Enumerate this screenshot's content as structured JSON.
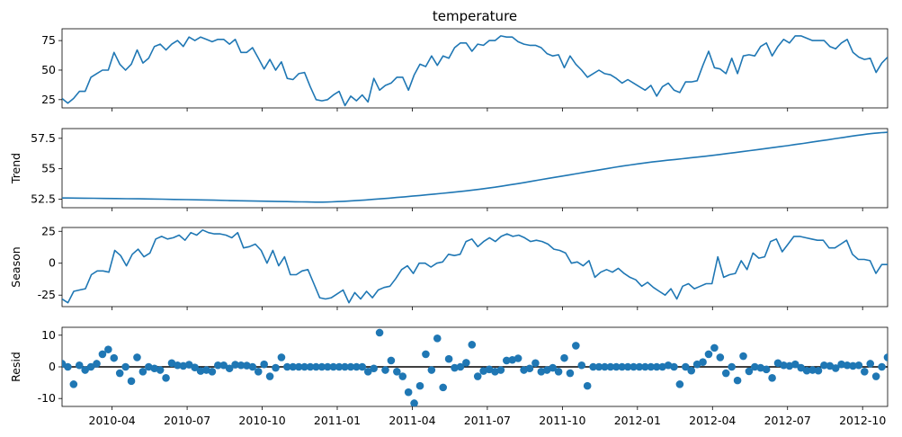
{
  "chart_data": [
    {
      "type": "line",
      "title": "temperature",
      "ylabel": "",
      "yticks": [
        25,
        50,
        75
      ],
      "ylim": [
        18,
        85
      ],
      "x_start": "2010-02",
      "x_end": "2012-10",
      "series": [
        {
          "values": [
            26,
            22,
            26,
            32,
            32,
            44,
            47,
            50,
            50,
            65,
            55,
            50,
            55,
            67,
            56,
            60,
            70,
            72,
            67,
            72,
            75,
            70,
            78,
            75,
            78,
            76,
            74,
            76,
            76,
            72,
            76,
            65,
            65,
            69,
            60,
            51,
            59,
            50,
            57,
            43,
            42,
            47,
            48,
            36,
            25,
            24,
            25,
            29,
            32,
            20,
            28,
            24,
            29,
            23,
            43,
            33,
            37,
            39,
            44,
            44,
            33,
            46,
            55,
            53,
            62,
            54,
            62,
            60,
            69,
            73,
            73,
            66,
            72,
            71,
            75,
            75,
            79,
            78,
            78,
            74,
            72,
            71,
            71,
            69,
            64,
            62,
            63,
            52,
            62,
            55,
            50,
            44,
            47,
            50,
            47,
            46,
            43,
            39,
            42,
            39,
            36,
            33,
            37,
            28,
            36,
            39,
            33,
            31,
            40,
            40,
            41,
            54,
            66,
            52,
            51,
            47,
            60,
            47,
            62,
            63,
            62,
            70,
            73,
            62,
            70,
            76,
            73,
            79,
            79,
            77,
            75,
            75,
            75,
            70,
            68,
            73,
            76,
            65,
            61,
            59,
            60,
            48,
            56,
            61
          ]
        }
      ]
    },
    {
      "type": "line",
      "title": "",
      "ylabel": "Trend",
      "yticks": [
        52.5,
        55.0,
        57.5
      ],
      "ylim": [
        51.8,
        58.3
      ],
      "series": [
        {
          "values_by_date": [
            [
              "2010-02",
              52.6
            ],
            [
              "2010-06",
              52.5
            ],
            [
              "2010-11",
              52.3
            ],
            [
              "2011-01",
              52.3
            ],
            [
              "2011-04",
              52.75
            ],
            [
              "2011-07",
              53.4
            ],
            [
              "2011-10",
              54.4
            ],
            [
              "2012-01",
              55.4
            ],
            [
              "2012-04",
              56.1
            ],
            [
              "2012-07",
              56.9
            ],
            [
              "2012-10",
              57.8
            ],
            [
              "2012-11",
              58.0
            ]
          ]
        }
      ]
    },
    {
      "type": "line",
      "title": "",
      "ylabel": "Season",
      "yticks": [
        25,
        0,
        -25
      ],
      "ylim": [
        -34,
        28
      ],
      "series": [
        {
          "values": [
            -28,
            -31,
            -22,
            -21,
            -20,
            -9,
            -6,
            -6,
            -7,
            10,
            6,
            -2,
            7,
            11,
            5,
            8,
            19,
            21,
            19,
            20,
            22,
            18,
            24,
            22,
            26,
            24,
            23,
            23,
            22,
            20,
            24,
            12,
            13,
            15,
            10,
            0,
            10,
            -2,
            5,
            -9,
            -9,
            -6,
            -5,
            -16,
            -27,
            -28,
            -27,
            -24,
            -21,
            -31,
            -23,
            -28,
            -22,
            -27,
            -21,
            -19,
            -18,
            -12,
            -5,
            -2,
            -8,
            0,
            0,
            -3,
            0,
            1,
            7,
            6,
            7,
            17,
            19,
            13,
            17,
            20,
            17,
            21,
            23,
            21,
            22,
            20,
            17,
            18,
            17,
            15,
            11,
            10,
            8,
            0,
            1,
            -2,
            2,
            -11,
            -7,
            -5,
            -7,
            -4,
            -8,
            -11,
            -13,
            -18,
            -15,
            -19,
            -22,
            -25,
            -20,
            -28,
            -18,
            -16,
            -20,
            -18,
            -16,
            -16,
            5,
            -11,
            -9,
            -8,
            2,
            -5,
            8,
            4,
            5,
            17,
            19,
            9,
            15,
            21,
            21,
            20,
            19,
            18,
            18,
            12,
            12,
            15,
            18,
            7,
            3,
            3,
            2,
            -8,
            -1,
            -1
          ]
        }
      ]
    },
    {
      "type": "scatter",
      "title": "",
      "ylabel": "Resid",
      "yticks": [
        10,
        0,
        -10
      ],
      "ylim": [
        -12.5,
        12.5
      ],
      "zero_line": true,
      "series": [
        {
          "values": [
            1,
            0,
            -5.5,
            0.5,
            -1,
            0,
            1,
            4,
            5.5,
            2.8,
            -2,
            0,
            -4.5,
            3,
            -1.5,
            0,
            -0.5,
            -1,
            -3.5,
            1.2,
            0.5,
            0.3,
            0.7,
            -0.2,
            -1.3,
            -1,
            -1.5,
            0.5,
            0.5,
            -0.5,
            0.7,
            0.5,
            0.4,
            0,
            -1.5,
            0.8,
            -3,
            -0.3,
            3,
            0,
            0,
            0,
            0,
            0,
            0,
            0,
            0,
            0,
            0,
            0,
            0,
            0,
            0,
            -1.5,
            -0.5,
            10.8,
            -1,
            2,
            -1.5,
            -3,
            -8,
            -11.5,
            -6,
            4,
            -1,
            9,
            -6.5,
            2.5,
            -0.3,
            0,
            1.3,
            7,
            -3,
            -1.3,
            -0.8,
            -1.5,
            -1,
            2,
            2.2,
            2.7,
            -1,
            -0.5,
            1.2,
            -1.5,
            -1,
            -0.3,
            -1.5,
            2.8,
            -2,
            6.7,
            0.5,
            -6,
            0,
            0,
            0,
            0,
            0,
            0,
            0,
            0,
            0,
            0,
            0,
            0,
            0,
            0.5,
            0,
            -5.5,
            0,
            -1.2,
            0.8,
            1.5,
            4,
            6,
            3,
            -2,
            0,
            -4.3,
            3.4,
            -1.4,
            0,
            -0.3,
            -0.8,
            -3.5,
            1.2,
            0.5,
            0.3,
            0.8,
            -0.3,
            -1.2,
            -1,
            -1.2,
            0.5,
            0.3,
            -0.4,
            0.8,
            0.5,
            0.3,
            0.5,
            -1.5,
            1,
            -3,
            0,
            3
          ]
        }
      ]
    }
  ],
  "x_axis": {
    "tick_labels": [
      "2010-04",
      "2010-07",
      "2010-10",
      "2011-01",
      "2011-04",
      "2011-07",
      "2011-10",
      "2012-01",
      "2012-04",
      "2012-07",
      "2012-10"
    ]
  },
  "colors": {
    "line": "#1f77b4",
    "zero_line": "#000000",
    "axis": "#000000",
    "text": "#000000",
    "background": "#ffffff"
  }
}
